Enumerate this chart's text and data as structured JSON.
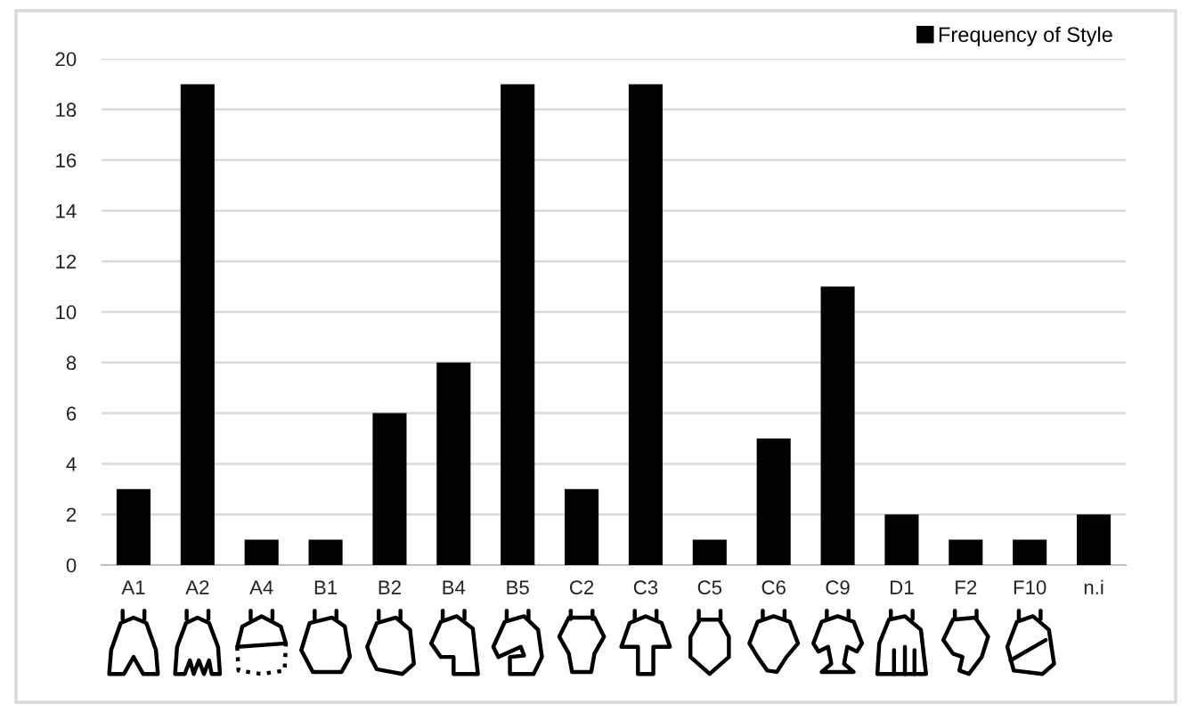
{
  "chart_data": {
    "type": "bar",
    "categories": [
      "A1",
      "A2",
      "A4",
      "B1",
      "B2",
      "B4",
      "B5",
      "C2",
      "C3",
      "C5",
      "C6",
      "C9",
      "D1",
      "F2",
      "F10",
      "n.i"
    ],
    "series": [
      {
        "name": "Frequency of Style",
        "color": "#000000",
        "values": [
          3,
          19,
          1,
          1,
          6,
          8,
          19,
          3,
          19,
          1,
          5,
          11,
          2,
          1,
          1,
          2
        ]
      }
    ],
    "ylim": [
      0,
      20
    ],
    "yticks": [
      0,
      2,
      4,
      6,
      8,
      10,
      12,
      14,
      16,
      18,
      20
    ],
    "grid": "y",
    "legend": "top right"
  }
}
